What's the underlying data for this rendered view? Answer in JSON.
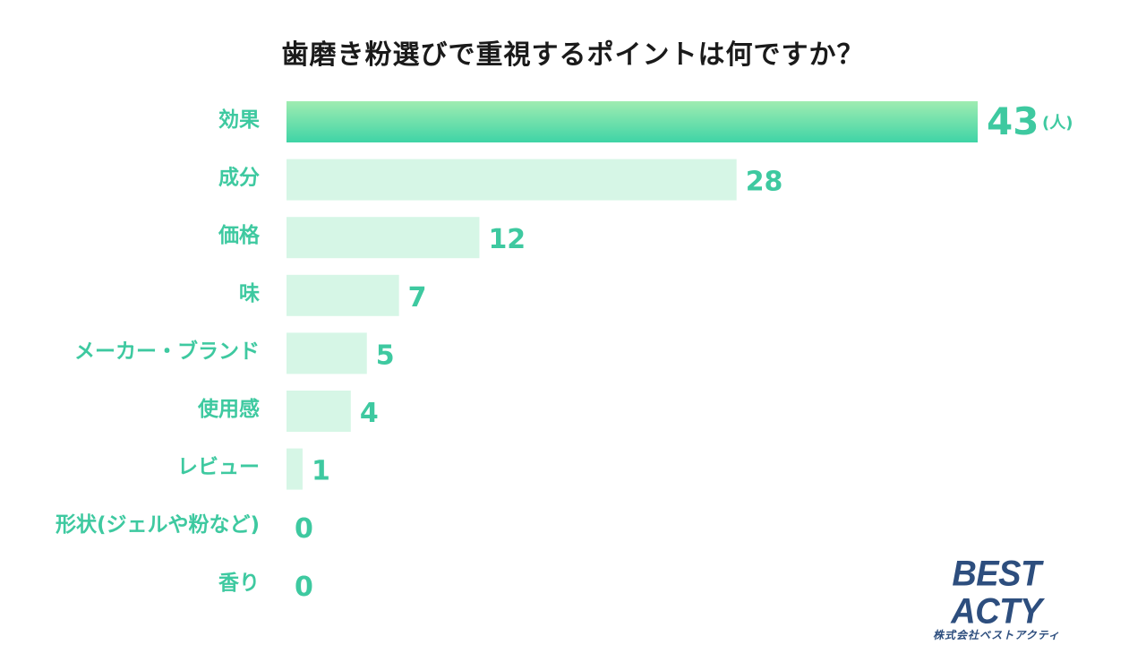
{
  "title": "歯磨き粉選びで重視するポイントは何ですか？",
  "unit": "(人)",
  "logo": {
    "main": "BEST ACTY",
    "sub": "株式会社ベストアクティ"
  },
  "colors": {
    "top_bar_start": "#9fecb1",
    "top_bar_end": "#3fd4a6",
    "bar": "#d6f6e6",
    "label": "#3ec9a0",
    "logo": "#2d4e7e"
  },
  "chart_data": {
    "type": "bar",
    "orientation": "horizontal",
    "title": "歯磨き粉選びで重視するポイントは何ですか？",
    "categories": [
      "効果",
      "成分",
      "価格",
      "味",
      "メーカー・ブランド",
      "使用感",
      "レビュー",
      "形状(ジェルや粉など)",
      "香り"
    ],
    "values": [
      43,
      28,
      12,
      7,
      5,
      4,
      1,
      0,
      0
    ],
    "unit": "(人)",
    "xlim": [
      0,
      43
    ],
    "grid": false,
    "legend": "none"
  }
}
